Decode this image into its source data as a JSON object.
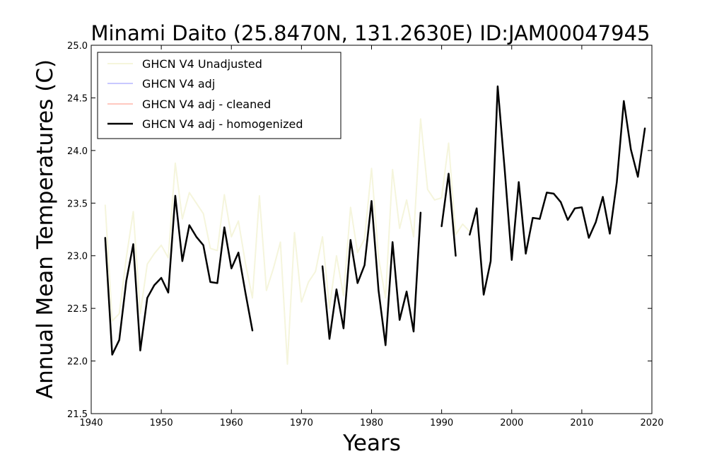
{
  "chart_data": {
    "type": "line",
    "title": "Minami Daito (25.8470N, 131.2630E) ID:JAM00047945",
    "xlabel": "Years",
    "ylabel": "Annual Mean Temperatures (C)",
    "xlim": [
      1940,
      2020
    ],
    "ylim": [
      21.5,
      25.0
    ],
    "xticks": [
      1940,
      1950,
      1960,
      1970,
      1980,
      1990,
      2000,
      2010,
      2020
    ],
    "yticks": [
      21.5,
      22.0,
      22.5,
      23.0,
      23.5,
      24.0,
      24.5,
      25.0
    ],
    "ytick_labels": [
      "21.5",
      "22.0",
      "22.5",
      "23.0",
      "23.5",
      "24.0",
      "24.5",
      "25.0"
    ],
    "grid": false,
    "legend_position": "upper-left",
    "series": [
      {
        "name": "GHCN V4 Unadjusted",
        "color": "#f5f5dc",
        "points": [
          [
            1942,
            23.48
          ],
          [
            1943,
            22.38
          ],
          [
            1944,
            22.45
          ],
          [
            1945,
            22.98
          ],
          [
            1946,
            23.42
          ],
          [
            1947,
            22.45
          ],
          [
            1948,
            22.92
          ],
          [
            1949,
            23.02
          ],
          [
            1950,
            23.1
          ],
          [
            1951,
            22.98
          ],
          [
            1952,
            23.88
          ],
          [
            1953,
            23.35
          ],
          [
            1954,
            23.6
          ],
          [
            1955,
            23.5
          ],
          [
            1956,
            23.4
          ],
          [
            1957,
            23.07
          ],
          [
            1958,
            23.05
          ],
          [
            1959,
            23.58
          ],
          [
            1960,
            23.18
          ],
          [
            1961,
            23.33
          ],
          [
            1962,
            22.93
          ],
          [
            1963,
            22.6
          ],
          [
            1964,
            23.57
          ],
          [
            1965,
            22.67
          ],
          [
            1966,
            22.88
          ],
          [
            1967,
            23.13
          ],
          [
            1968,
            21.97
          ],
          [
            1969,
            23.22
          ],
          [
            1970,
            22.56
          ],
          [
            1971,
            22.75
          ],
          [
            1972,
            22.85
          ],
          [
            1973,
            23.18
          ],
          [
            1974,
            22.5
          ],
          [
            1975,
            23.0
          ],
          [
            1976,
            22.62
          ],
          [
            1977,
            23.46
          ],
          [
            1978,
            23.03
          ],
          [
            1979,
            23.16
          ],
          [
            1980,
            23.83
          ],
          [
            1981,
            22.98
          ],
          [
            1982,
            22.6
          ],
          [
            1983,
            23.82
          ],
          [
            1984,
            23.26
          ],
          [
            1985,
            23.53
          ],
          [
            1986,
            23.18
          ],
          [
            1987,
            24.3
          ],
          [
            1988,
            23.63
          ],
          [
            1989,
            23.53
          ],
          [
            1990,
            23.55
          ],
          [
            1991,
            24.07
          ],
          [
            1992,
            23.2
          ],
          [
            1993,
            23.3
          ],
          [
            1994,
            23.23
          ]
        ]
      },
      {
        "name": "GHCN V4 adj",
        "color": "#c8c8ff",
        "points": []
      },
      {
        "name": "GHCN V4 adj - cleaned",
        "color": "#ffc8c0",
        "points": []
      },
      {
        "name": "GHCN V4 adj - homogenized",
        "color": "#000000",
        "segments": [
          [
            [
              1942,
              23.17
            ],
            [
              1943,
              22.06
            ],
            [
              1944,
              22.2
            ],
            [
              1945,
              22.76
            ],
            [
              1946,
              23.11
            ],
            [
              1947,
              22.1
            ],
            [
              1948,
              22.6
            ],
            [
              1949,
              22.72
            ],
            [
              1950,
              22.79
            ],
            [
              1951,
              22.65
            ],
            [
              1952,
              23.57
            ],
            [
              1953,
              22.95
            ],
            [
              1954,
              23.29
            ],
            [
              1955,
              23.18
            ],
            [
              1956,
              23.1
            ],
            [
              1957,
              22.75
            ],
            [
              1958,
              22.74
            ],
            [
              1959,
              23.27
            ],
            [
              1960,
              22.88
            ],
            [
              1961,
              23.03
            ],
            [
              1962,
              22.65
            ],
            [
              1963,
              22.29
            ]
          ],
          [
            [
              1973,
              22.9
            ],
            [
              1974,
              22.21
            ],
            [
              1975,
              22.68
            ],
            [
              1976,
              22.31
            ],
            [
              1977,
              23.15
            ],
            [
              1978,
              22.74
            ],
            [
              1979,
              22.91
            ],
            [
              1980,
              23.52
            ],
            [
              1981,
              22.67
            ],
            [
              1982,
              22.15
            ],
            [
              1983,
              23.13
            ],
            [
              1984,
              22.39
            ],
            [
              1985,
              22.66
            ],
            [
              1986,
              22.28
            ],
            [
              1987,
              23.41
            ]
          ],
          [
            [
              1990,
              23.28
            ],
            [
              1991,
              23.78
            ],
            [
              1992,
              23.0
            ]
          ],
          [
            [
              1994,
              23.2
            ],
            [
              1995,
              23.45
            ],
            [
              1996,
              22.63
            ],
            [
              1997,
              22.95
            ],
            [
              1998,
              24.61
            ],
            [
              1999,
              23.82
            ],
            [
              2000,
              22.96
            ],
            [
              2001,
              23.7
            ],
            [
              2002,
              23.02
            ],
            [
              2003,
              23.36
            ],
            [
              2004,
              23.35
            ],
            [
              2005,
              23.6
            ],
            [
              2006,
              23.59
            ],
            [
              2007,
              23.51
            ],
            [
              2008,
              23.34
            ],
            [
              2009,
              23.45
            ],
            [
              2010,
              23.46
            ],
            [
              2011,
              23.17
            ],
            [
              2012,
              23.32
            ],
            [
              2013,
              23.56
            ],
            [
              2014,
              23.21
            ],
            [
              2015,
              23.7
            ],
            [
              2016,
              24.47
            ],
            [
              2017,
              24.01
            ],
            [
              2018,
              23.75
            ],
            [
              2019,
              24.21
            ]
          ]
        ]
      }
    ]
  }
}
